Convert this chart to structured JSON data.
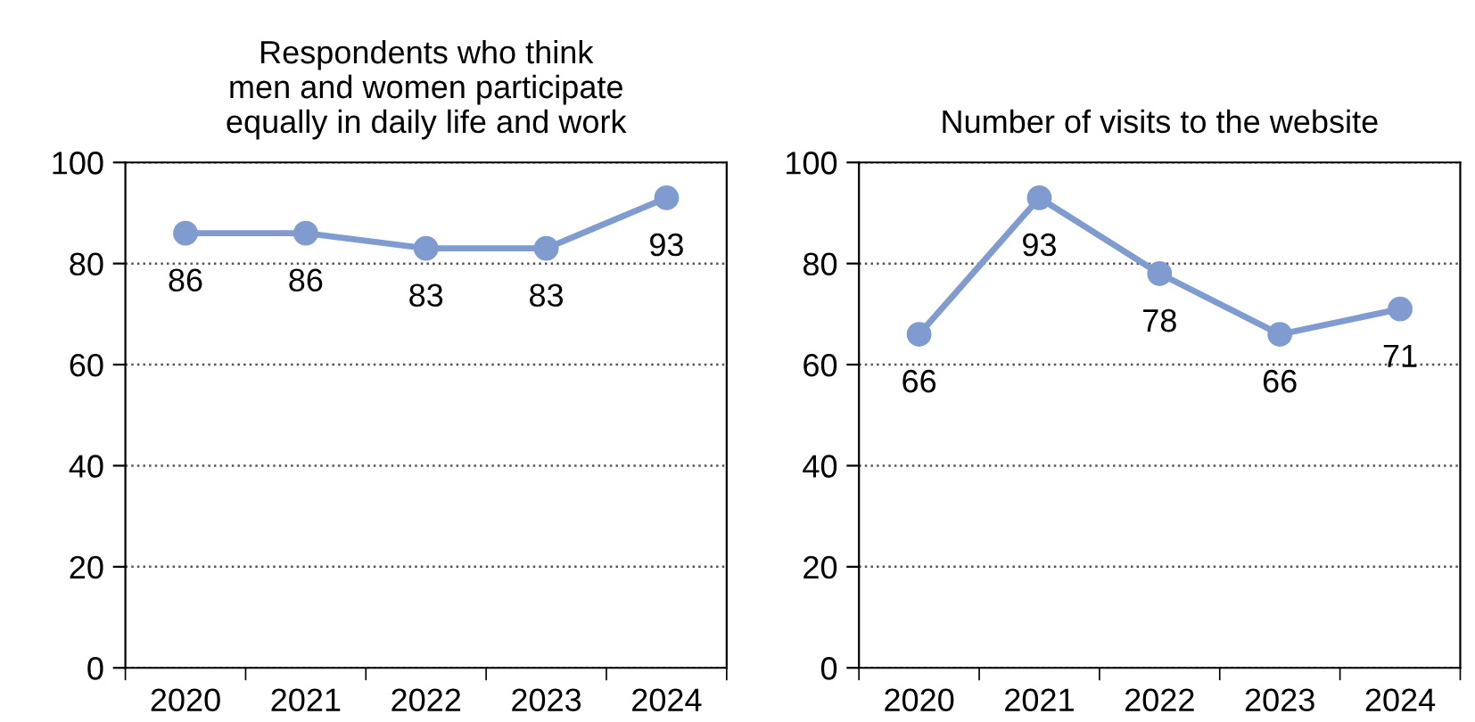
{
  "chart_data": [
    {
      "type": "line",
      "title": "Respondents who think\nmen and women participate\nequally in daily life and work",
      "categories": [
        "2020",
        "2021",
        "2022",
        "2023",
        "2024"
      ],
      "series": [
        {
          "color": "#7f9bcf",
          "values": [
            86,
            86,
            83,
            83,
            93
          ]
        }
      ],
      "ylim": [
        0,
        100
      ],
      "yticks": [
        0,
        20,
        40,
        60,
        80,
        100
      ],
      "grid": "y",
      "marker": "circle",
      "line_style": "solid",
      "data_labels": true
    },
    {
      "type": "line",
      "title": "Number of visits to the website",
      "categories": [
        "2020",
        "2021",
        "2022",
        "2023",
        "2024"
      ],
      "series": [
        {
          "color": "#7f9bcf",
          "values": [
            66,
            93,
            78,
            66,
            71
          ]
        }
      ],
      "ylim": [
        0,
        100
      ],
      "yticks": [
        0,
        20,
        40,
        60,
        80,
        100
      ],
      "grid": "y",
      "marker": "circle",
      "line_style": "solid",
      "data_labels": true
    }
  ]
}
